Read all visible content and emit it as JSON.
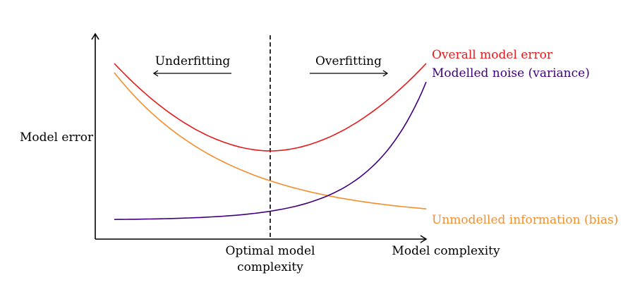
{
  "diagram": {
    "y_axis_label": "Model error",
    "x_axis_label": "Model complexity",
    "optimal_label_line1": "Optimal model",
    "optimal_label_line2": "complexity",
    "underfitting_label": "Underfitting",
    "overfitting_label": "Overfitting",
    "curves": [
      {
        "id": "overall",
        "label": "Overall model error",
        "color": "#e41a1c"
      },
      {
        "id": "variance",
        "label": "Modelled noise (variance)",
        "color": "#3f007d"
      },
      {
        "id": "bias",
        "label": "Unmodelled information (bias)",
        "color": "#f28e2b"
      }
    ],
    "axis_color": "#000000"
  }
}
